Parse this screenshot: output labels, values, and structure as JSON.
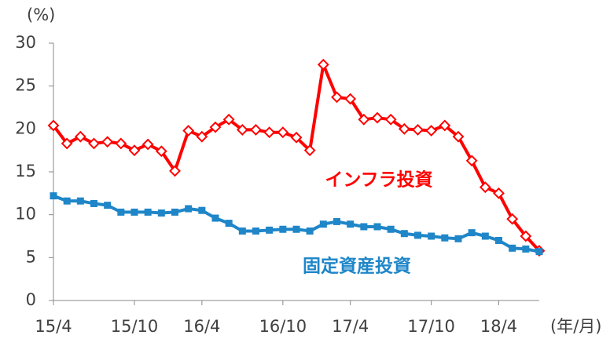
{
  "chart_data": {
    "type": "line",
    "y_label": "(%)",
    "x_label": "(年/月)",
    "categories": [
      "15/4",
      null,
      null,
      null,
      null,
      null,
      "15/10",
      null,
      null,
      null,
      null,
      "16/4",
      null,
      null,
      null,
      null,
      null,
      "16/10",
      null,
      null,
      null,
      null,
      "17/4",
      null,
      null,
      null,
      null,
      null,
      "17/10",
      null,
      null,
      null,
      null,
      "18/4",
      null,
      null,
      null
    ],
    "series": [
      {
        "name": "インフラ投資",
        "color": "#ff0000",
        "marker": "diamond",
        "values": [
          20.4,
          18.3,
          19.1,
          18.3,
          18.5,
          18.3,
          17.5,
          18.2,
          17.4,
          15.1,
          19.8,
          19.1,
          20.2,
          21.1,
          19.9,
          19.9,
          19.6,
          19.6,
          19.0,
          17.5,
          27.5,
          23.7,
          23.5,
          21.1,
          21.3,
          21.1,
          20.0,
          19.9,
          19.8,
          20.4,
          19.1,
          16.3,
          13.2,
          12.5,
          9.5,
          7.5,
          5.8
        ]
      },
      {
        "name": "固定資産投資",
        "color": "#1f86c8",
        "marker": "square",
        "values": [
          12.2,
          11.6,
          11.6,
          11.3,
          11.1,
          10.3,
          10.3,
          10.3,
          10.2,
          10.3,
          10.7,
          10.5,
          9.6,
          9.0,
          8.1,
          8.1,
          8.2,
          8.3,
          8.3,
          8.1,
          8.9,
          9.2,
          8.9,
          8.6,
          8.6,
          8.3,
          7.8,
          7.6,
          7.5,
          7.3,
          7.2,
          7.9,
          7.5,
          7.0,
          6.1,
          6.0,
          5.7
        ]
      }
    ],
    "ylim": [
      0,
      30
    ],
    "yticks": [
      0,
      5,
      10,
      15,
      20,
      25,
      30
    ],
    "grid": false
  }
}
